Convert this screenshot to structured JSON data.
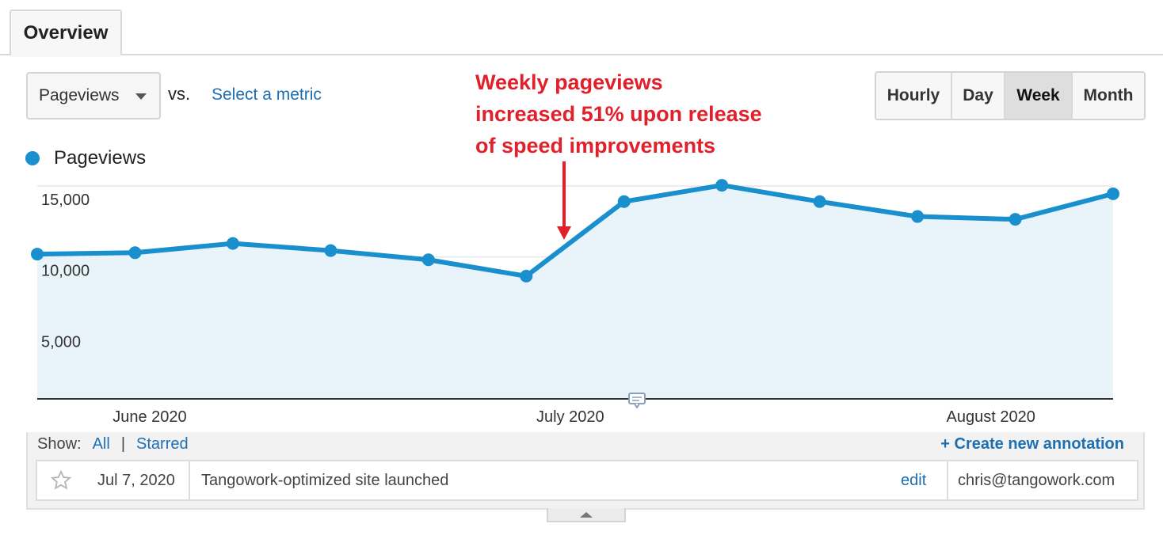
{
  "tabs": [
    {
      "label": "Overview",
      "active": true
    }
  ],
  "toolbar": {
    "metric_selected": "Pageviews",
    "vs_label": "vs.",
    "select_metric_label": "Select a metric",
    "periods": [
      {
        "label": "Hourly",
        "active": false
      },
      {
        "label": "Day",
        "active": false
      },
      {
        "label": "Week",
        "active": true
      },
      {
        "label": "Month",
        "active": false
      }
    ]
  },
  "callout": {
    "lines": [
      "Weekly pageviews",
      "increased 51% upon release",
      "of speed improvements"
    ],
    "color": "#e0202b"
  },
  "legend": {
    "label": "Pageviews",
    "color": "#1a8fcd"
  },
  "chart_data": {
    "type": "area",
    "series": [
      {
        "name": "Pageviews",
        "values": [
          10200,
          10300,
          10950,
          10450,
          9800,
          8650,
          13900,
          15050,
          13900,
          12850,
          12650,
          14450
        ]
      }
    ],
    "x_labels": [
      "June 2020",
      "July 2020",
      "August 2020"
    ],
    "y_ticks": [
      "15,000",
      "10,000",
      "5,000"
    ],
    "ylim": [
      0,
      15000
    ],
    "grid": true,
    "line_color": "#1a8fcd",
    "fill_color": "#e8f3fa"
  },
  "annotations": {
    "show_label": "Show:",
    "all_label": "All",
    "separator": "|",
    "starred_label": "Starred",
    "create_label": "+ Create new annotation",
    "rows": [
      {
        "date": "Jul 7, 2020",
        "text": "Tangowork-optimized site launched",
        "edit_label": "edit",
        "author": "chris@tangowork.com"
      }
    ]
  }
}
